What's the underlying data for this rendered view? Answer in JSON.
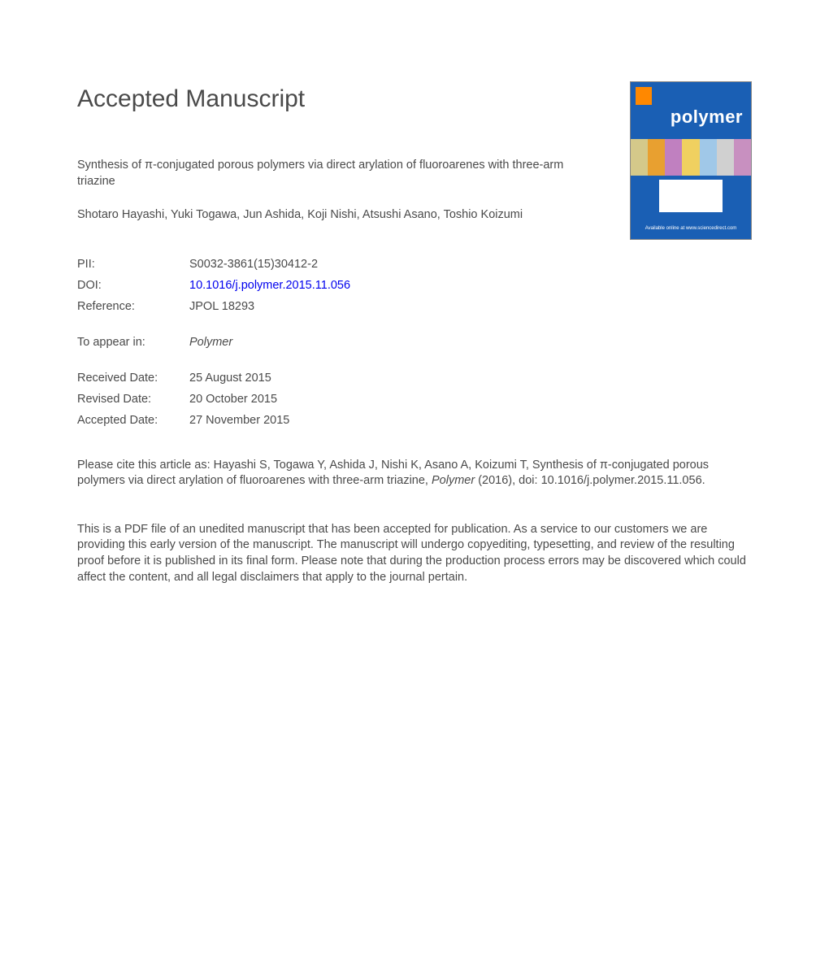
{
  "heading": "Accepted Manuscript",
  "cover": {
    "background": "#1a5fb4",
    "logo_color": "#ff8800",
    "title": "polymer",
    "band_colors": [
      "#d4c98a",
      "#e8a030",
      "#c080c0",
      "#f0d060",
      "#a0c8e8",
      "#d0d0d0",
      "#c890c0"
    ],
    "panel_bg": "#ffffff",
    "footer_text": "Available online at www.sciencedirect.com"
  },
  "article_title": "Synthesis of π-conjugated porous polymers via direct arylation of fluoroarenes with three-arm triazine",
  "authors": "Shotaro Hayashi, Yuki Togawa, Jun Ashida, Koji Nishi, Atsushi Asano, Toshio Koizumi",
  "meta": {
    "pii_label": "PII:",
    "pii_value": "S0032-3861(15)30412-2",
    "doi_label": "DOI:",
    "doi_value": "10.1016/j.polymer.2015.11.056",
    "ref_label": "Reference:",
    "ref_value": "JPOL 18293",
    "appear_label": "To appear in:",
    "appear_value": "Polymer",
    "received_label": "Received Date:",
    "received_value": "25 August 2015",
    "revised_label": "Revised Date:",
    "revised_value": "20 October 2015",
    "accepted_label": "Accepted Date:",
    "accepted_value": "27 November 2015"
  },
  "citation": {
    "prefix": "Please cite this article as: Hayashi S, Togawa Y, Ashida J, Nishi K, Asano A, Koizumi T, Synthesis of π-conjugated porous polymers via direct arylation of fluoroarenes with three-arm triazine, ",
    "journal": "Polymer",
    "year": " (2016), doi: 10.1016/j.polymer.2015.11.056."
  },
  "disclaimer": "This is a PDF file of an unedited manuscript that has been accepted for publication. As a service to our customers we are providing this early version of the manuscript. The manuscript will undergo copyediting, typesetting, and review of the resulting proof before it is published in its final form. Please note that during the production process errors may be discovered which could affect the content, and all legal disclaimers that apply to the journal pertain."
}
